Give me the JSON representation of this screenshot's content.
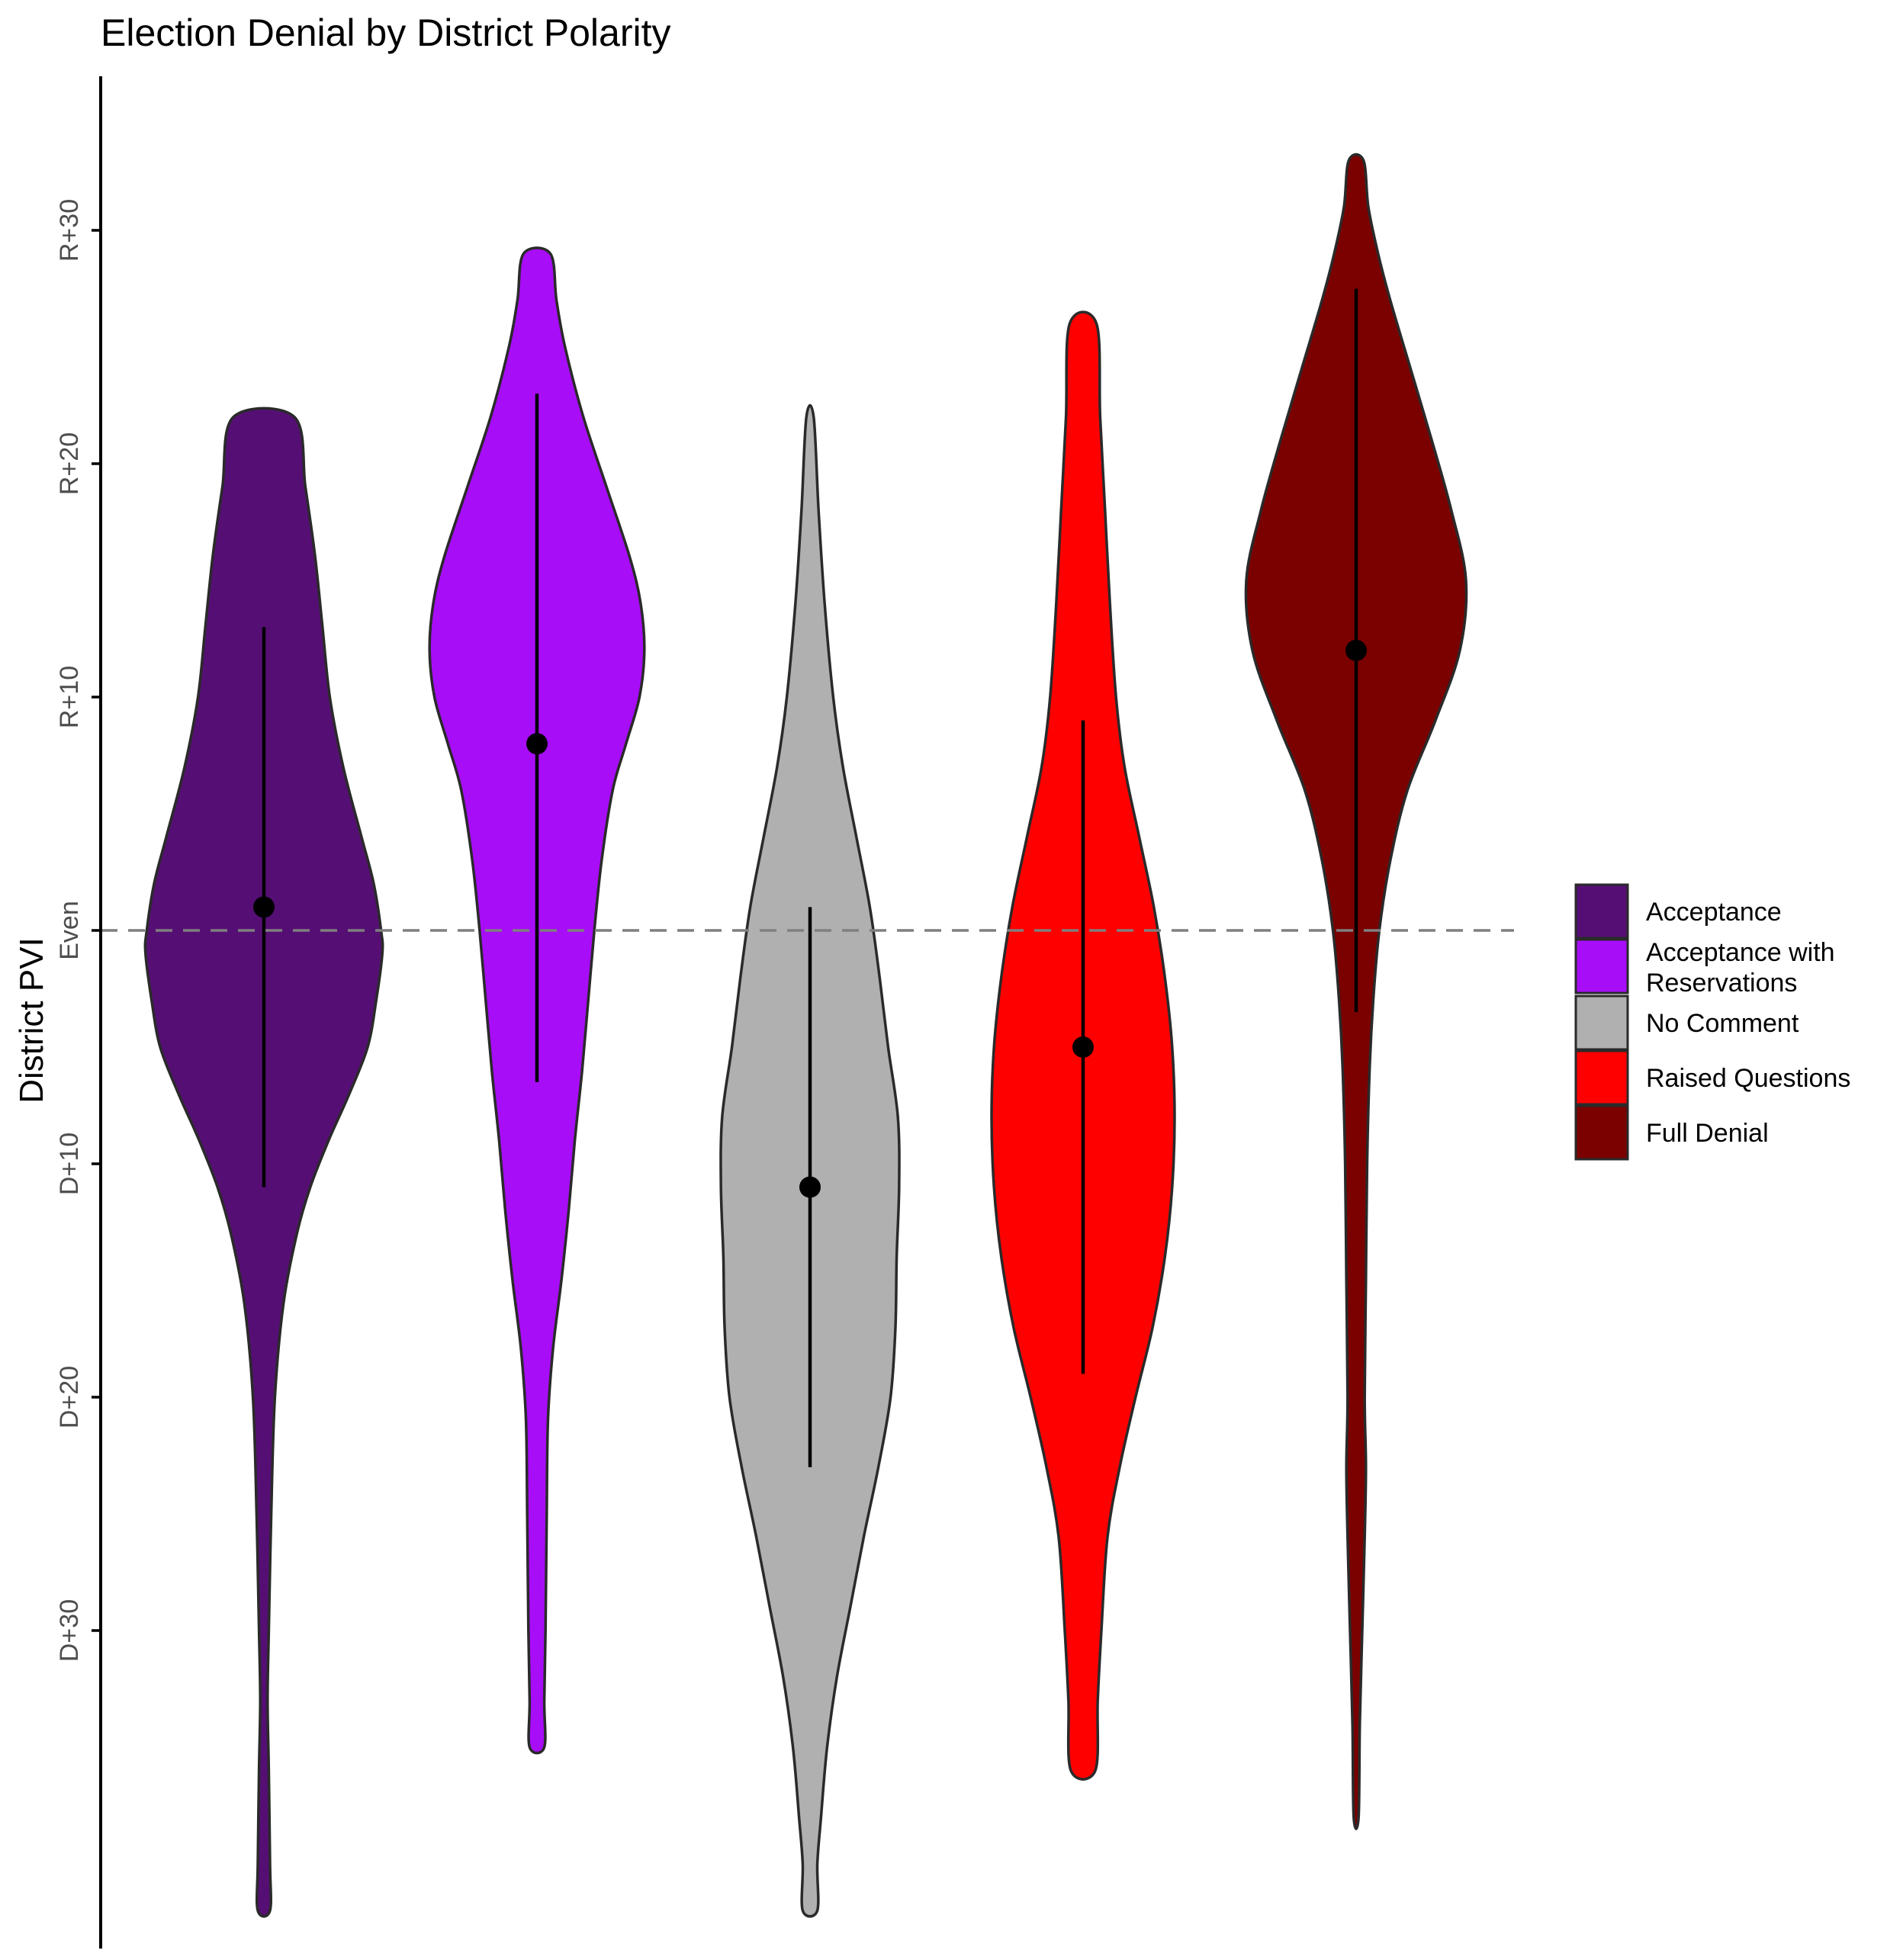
{
  "chart_data": {
    "type": "violin",
    "title": "Election Denial by District Polarity",
    "xlabel": "",
    "ylabel": "District PVI",
    "ylim": [
      -42,
      37
    ],
    "y_direction": "positive values = R lean, negative values = D lean",
    "yticks": [
      {
        "value": 30,
        "label": "R+30"
      },
      {
        "value": 20,
        "label": "R+20"
      },
      {
        "value": 10,
        "label": "R+10"
      },
      {
        "value": 0,
        "label": "Even"
      },
      {
        "value": -10,
        "label": "D+10"
      },
      {
        "value": -20,
        "label": "D+20"
      },
      {
        "value": -30,
        "label": "D+30"
      }
    ],
    "reference_line": {
      "value": 0,
      "style": "dashed",
      "color": "#7f7f7f"
    },
    "grid": false,
    "legend_position": "right",
    "series": [
      {
        "name": "Acceptance",
        "color": "#550f74",
        "median": 1,
        "range_low": -11,
        "range_high": 13,
        "density": [
          [
            22,
            0.25
          ],
          [
            19,
            0.34
          ],
          [
            16,
            0.42
          ],
          [
            13,
            0.48
          ],
          [
            10,
            0.54
          ],
          [
            7,
            0.65
          ],
          [
            4,
            0.8
          ],
          [
            2,
            0.9
          ],
          [
            0,
            0.96
          ],
          [
            -1,
            0.97
          ],
          [
            -3,
            0.92
          ],
          [
            -5,
            0.85
          ],
          [
            -7,
            0.7
          ],
          [
            -9,
            0.53
          ],
          [
            -11,
            0.38
          ],
          [
            -13,
            0.27
          ],
          [
            -16,
            0.16
          ],
          [
            -20,
            0.09
          ],
          [
            -25,
            0.06
          ],
          [
            -30,
            0.04
          ],
          [
            -33,
            0.03
          ],
          [
            -36,
            0.04
          ],
          [
            -40,
            0.05
          ],
          [
            -42,
            0.05
          ]
        ]
      },
      {
        "name": "Acceptance with Reservations",
        "color": "#a80df8",
        "median": 8,
        "range_low": -6.5,
        "range_high": 23,
        "density": [
          [
            29,
            0.11
          ],
          [
            27,
            0.16
          ],
          [
            25,
            0.23
          ],
          [
            22,
            0.38
          ],
          [
            19,
            0.57
          ],
          [
            16,
            0.76
          ],
          [
            14,
            0.85
          ],
          [
            12,
            0.88
          ],
          [
            10,
            0.84
          ],
          [
            8,
            0.73
          ],
          [
            6,
            0.62
          ],
          [
            3,
            0.53
          ],
          [
            0,
            0.47
          ],
          [
            -3,
            0.42
          ],
          [
            -6,
            0.37
          ],
          [
            -9,
            0.31
          ],
          [
            -12,
            0.26
          ],
          [
            -15,
            0.2
          ],
          [
            -18,
            0.13
          ],
          [
            -21,
            0.09
          ],
          [
            -25,
            0.08
          ],
          [
            -30,
            0.07
          ],
          [
            -33,
            0.06
          ],
          [
            -35,
            0.06
          ]
        ]
      },
      {
        "name": "No Comment",
        "color": "#b0b0b0",
        "median": -11,
        "range_low": -23,
        "range_high": 1,
        "density": [
          [
            22,
            0.03
          ],
          [
            18,
            0.07
          ],
          [
            14,
            0.12
          ],
          [
            10,
            0.19
          ],
          [
            7,
            0.27
          ],
          [
            4,
            0.38
          ],
          [
            1,
            0.49
          ],
          [
            -2,
            0.57
          ],
          [
            -5,
            0.64
          ],
          [
            -8,
            0.72
          ],
          [
            -11,
            0.73
          ],
          [
            -14,
            0.71
          ],
          [
            -17,
            0.7
          ],
          [
            -20,
            0.66
          ],
          [
            -23,
            0.56
          ],
          [
            -26,
            0.44
          ],
          [
            -29,
            0.33
          ],
          [
            -32,
            0.22
          ],
          [
            -35,
            0.14
          ],
          [
            -38,
            0.09
          ],
          [
            -40,
            0.06
          ],
          [
            -42,
            0.06
          ]
        ]
      },
      {
        "name": "Raised Questions",
        "color": "#ff0000",
        "median": -5,
        "range_low": -19,
        "range_high": 9,
        "density": [
          [
            26,
            0.11
          ],
          [
            22,
            0.14
          ],
          [
            18,
            0.18
          ],
          [
            14,
            0.22
          ],
          [
            10,
            0.27
          ],
          [
            7,
            0.34
          ],
          [
            4,
            0.46
          ],
          [
            1,
            0.58
          ],
          [
            -2,
            0.67
          ],
          [
            -5,
            0.73
          ],
          [
            -8,
            0.75
          ],
          [
            -11,
            0.73
          ],
          [
            -14,
            0.67
          ],
          [
            -17,
            0.57
          ],
          [
            -20,
            0.43
          ],
          [
            -23,
            0.3
          ],
          [
            -26,
            0.2
          ],
          [
            -30,
            0.15
          ],
          [
            -33,
            0.12
          ],
          [
            -36,
            0.1
          ]
        ]
      },
      {
        "name": "Full Denial",
        "color": "#7b0000",
        "median": 12,
        "range_low": -3.5,
        "range_high": 27.5,
        "density": [
          [
            33,
            0.06
          ],
          [
            31,
            0.1
          ],
          [
            29,
            0.18
          ],
          [
            27,
            0.28
          ],
          [
            24,
            0.45
          ],
          [
            21,
            0.62
          ],
          [
            18,
            0.78
          ],
          [
            15,
            0.9
          ],
          [
            12,
            0.85
          ],
          [
            9,
            0.65
          ],
          [
            6,
            0.42
          ],
          [
            3,
            0.28
          ],
          [
            0,
            0.19
          ],
          [
            -3,
            0.14
          ],
          [
            -6,
            0.11
          ],
          [
            -10,
            0.09
          ],
          [
            -15,
            0.08
          ],
          [
            -20,
            0.07
          ],
          [
            -23,
            0.08
          ],
          [
            -26,
            0.07
          ],
          [
            -30,
            0.05
          ],
          [
            -34,
            0.03
          ],
          [
            -38,
            0.02
          ]
        ]
      }
    ]
  }
}
